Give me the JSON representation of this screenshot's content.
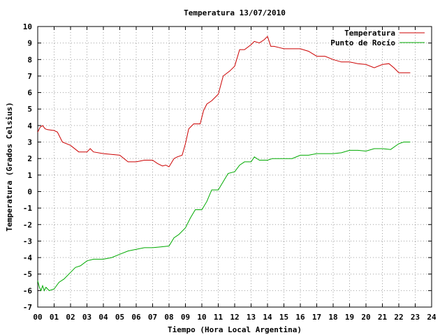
{
  "chart_data": {
    "type": "line",
    "title": "Temperatura 13/07/2010",
    "xlabel": "Tiempo (Hora Local Argentina)",
    "ylabel": "Temperatura (Grados Celsius)",
    "xlim": [
      0,
      24
    ],
    "ylim": [
      -7,
      10
    ],
    "xticks": [
      0,
      1,
      2,
      3,
      4,
      5,
      6,
      7,
      8,
      9,
      10,
      11,
      12,
      13,
      14,
      15,
      16,
      17,
      18,
      19,
      20,
      21,
      22,
      23,
      24
    ],
    "xtick_labels": [
      "00",
      "01",
      "02",
      "03",
      "04",
      "05",
      "06",
      "07",
      "08",
      "09",
      "10",
      "11",
      "12",
      "13",
      "14",
      "15",
      "16",
      "17",
      "18",
      "19",
      "20",
      "21",
      "22",
      "23",
      "24"
    ],
    "yticks": [
      -7,
      -6,
      -5,
      -4,
      -3,
      -2,
      -1,
      0,
      1,
      2,
      3,
      4,
      5,
      6,
      7,
      8,
      9,
      10
    ],
    "ytick_labels": [
      "-7",
      "-6",
      "-5",
      "-4",
      "-3",
      "-2",
      "-1",
      "0",
      "1",
      "2",
      "3",
      "4",
      "5",
      "6",
      "7",
      "8",
      "9",
      "10"
    ],
    "grid": true,
    "legend_position": "top-right",
    "series": [
      {
        "name": "Temperatura",
        "color": "#cc0000",
        "x": [
          0,
          0.15,
          0.3,
          0.45,
          0.6,
          1.0,
          1.2,
          1.5,
          2.0,
          2.5,
          3.0,
          3.2,
          3.4,
          4.0,
          4.5,
          5.0,
          5.5,
          6.0,
          6.5,
          7.0,
          7.3,
          7.6,
          7.8,
          8.0,
          8.3,
          8.5,
          8.8,
          9.0,
          9.2,
          9.5,
          9.9,
          10.1,
          10.3,
          10.6,
          11.0,
          11.3,
          11.7,
          12.0,
          12.3,
          12.6,
          13.0,
          13.2,
          13.5,
          13.8,
          14.0,
          14.2,
          14.4,
          14.8,
          15.0,
          15.5,
          16.0,
          16.5,
          17.0,
          17.5,
          18.0,
          18.5,
          19.0,
          19.5,
          20.0,
          20.5,
          21.0,
          21.4,
          21.7,
          22.0,
          22.3,
          22.7
        ],
        "values": [
          3.6,
          3.9,
          4.0,
          3.8,
          3.75,
          3.7,
          3.6,
          3.0,
          2.8,
          2.4,
          2.4,
          2.6,
          2.4,
          2.3,
          2.25,
          2.2,
          1.8,
          1.8,
          1.9,
          1.9,
          1.7,
          1.55,
          1.6,
          1.5,
          2.0,
          2.1,
          2.2,
          2.9,
          3.8,
          4.1,
          4.1,
          4.9,
          5.3,
          5.5,
          5.9,
          7.0,
          7.3,
          7.6,
          8.6,
          8.6,
          8.9,
          9.1,
          9.0,
          9.2,
          9.4,
          8.8,
          8.8,
          8.7,
          8.65,
          8.65,
          8.65,
          8.5,
          8.2,
          8.2,
          8.0,
          7.85,
          7.85,
          7.75,
          7.7,
          7.5,
          7.7,
          7.75,
          7.5,
          7.2,
          7.2,
          7.2
        ]
      },
      {
        "name": "Punto de Rocío",
        "color": "#00aa00",
        "x": [
          0,
          0.1,
          0.2,
          0.3,
          0.4,
          0.5,
          0.7,
          1.0,
          1.3,
          1.6,
          2.0,
          2.3,
          2.6,
          3.0,
          3.4,
          4.0,
          4.5,
          5.0,
          5.5,
          6.0,
          6.5,
          7.0,
          7.5,
          8.0,
          8.3,
          8.6,
          9.0,
          9.3,
          9.6,
          10.0,
          10.3,
          10.6,
          11.0,
          11.3,
          11.6,
          12.0,
          12.3,
          12.6,
          13.0,
          13.2,
          13.5,
          14.0,
          14.3,
          14.8,
          15.0,
          15.5,
          16.0,
          16.5,
          17.0,
          17.5,
          18.0,
          18.5,
          19.0,
          19.5,
          20.0,
          20.5,
          21.0,
          21.5,
          22.0,
          22.3,
          22.7
        ],
        "values": [
          -5.4,
          -5.8,
          -6.0,
          -5.7,
          -6.0,
          -5.8,
          -6.0,
          -5.9,
          -5.5,
          -5.3,
          -4.9,
          -4.6,
          -4.5,
          -4.2,
          -4.1,
          -4.1,
          -4.0,
          -3.8,
          -3.6,
          -3.5,
          -3.4,
          -3.4,
          -3.35,
          -3.3,
          -2.8,
          -2.6,
          -2.2,
          -1.6,
          -1.1,
          -1.1,
          -0.6,
          0.1,
          0.1,
          0.6,
          1.1,
          1.2,
          1.6,
          1.8,
          1.8,
          2.1,
          1.9,
          1.9,
          2.0,
          2.0,
          2.0,
          2.0,
          2.2,
          2.2,
          2.3,
          2.3,
          2.3,
          2.35,
          2.5,
          2.5,
          2.45,
          2.6,
          2.6,
          2.55,
          2.9,
          3.0,
          3.0
        ]
      }
    ]
  }
}
